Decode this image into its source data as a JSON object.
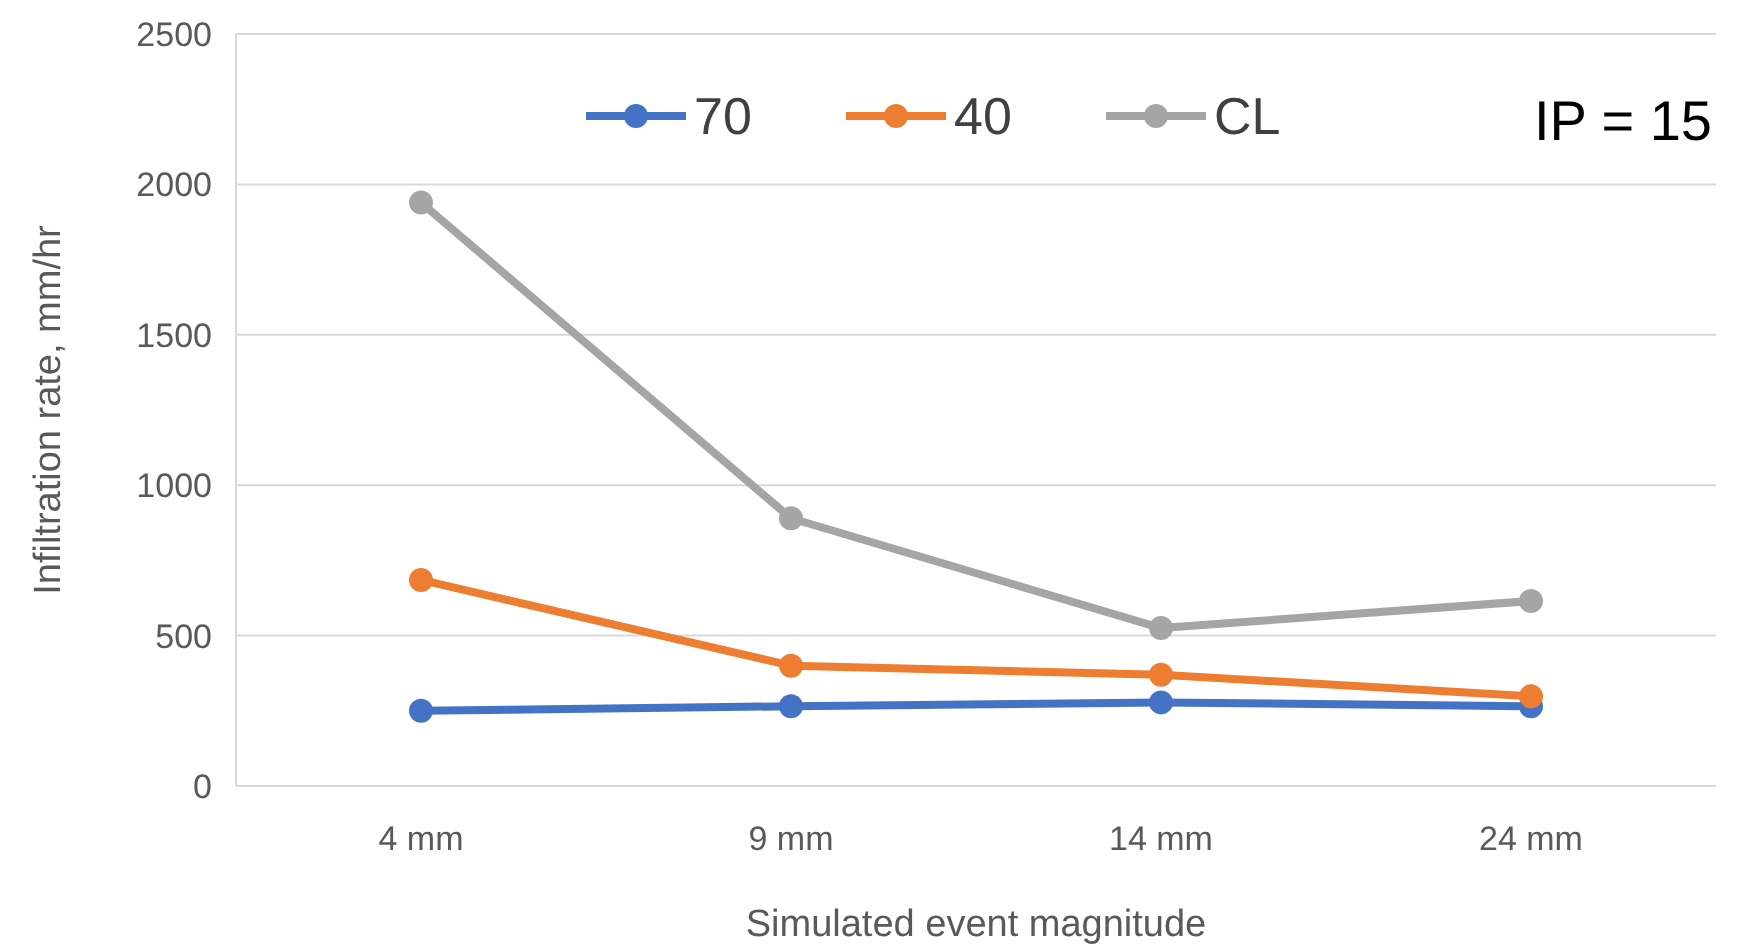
{
  "chart_data": {
    "type": "line",
    "xlabel": "Simulated event magnitude",
    "ylabel": "Infiltration rate, mm/hr",
    "categories": [
      "4 mm",
      "9 mm",
      "14 mm",
      "24 mm"
    ],
    "series": [
      {
        "name": "70",
        "color": "#4472c4",
        "values": [
          250,
          265,
          278,
          265
        ]
      },
      {
        "name": "40",
        "color": "#ed7d31",
        "values": [
          685,
          400,
          370,
          298
        ]
      },
      {
        "name": "CL",
        "color": "#a5a5a5",
        "values": [
          1940,
          890,
          525,
          615
        ]
      }
    ],
    "ylim": [
      0,
      2500
    ],
    "yticks": [
      0,
      500,
      1000,
      1500,
      2000,
      2500
    ],
    "grid": "y",
    "legend": "top",
    "marker": "circle",
    "line_style": "solid",
    "annotations": [
      "IP = 15"
    ]
  }
}
